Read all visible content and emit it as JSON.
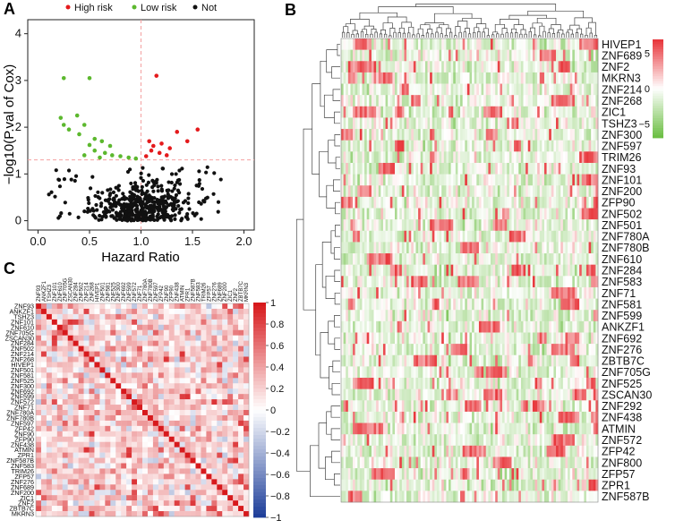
{
  "panel_labels": {
    "a": "A",
    "b": "B",
    "c": "C"
  },
  "chart_data": [
    {
      "type": "scatter",
      "title": "",
      "xlabel": "Hazard Ratio",
      "ylabel": "−log10(P.val of Cox)",
      "xlim": [
        -0.1,
        2.1
      ],
      "ylim": [
        -0.2,
        4.3
      ],
      "xticks": [
        "0.0",
        "0.5",
        "1.0",
        "1.5",
        "2.0"
      ],
      "yticks": [
        "0",
        "1",
        "2",
        "3",
        "4"
      ],
      "threshold_y": 1.3,
      "threshold_x": 1.0,
      "legend": {
        "placement": "top",
        "items": [
          {
            "label": "High risk",
            "color": "#e41a1c"
          },
          {
            "label": "Low risk",
            "color": "#5cb82e"
          },
          {
            "label": "Not",
            "color": "#111111"
          }
        ]
      },
      "series": [
        {
          "name": "High risk",
          "color": "#e41a1c",
          "points": [
            [
              1.15,
              3.1
            ],
            [
              1.55,
              1.95
            ],
            [
              1.35,
              1.9
            ],
            [
              1.45,
              1.7
            ],
            [
              1.08,
              1.7
            ],
            [
              1.2,
              1.65
            ],
            [
              1.12,
              1.6
            ],
            [
              1.28,
              1.55
            ],
            [
              1.1,
              1.5
            ],
            [
              1.18,
              1.45
            ],
            [
              1.25,
              1.4
            ],
            [
              1.05,
              1.38
            ]
          ]
        },
        {
          "name": "Low risk",
          "color": "#5cb82e",
          "points": [
            [
              0.25,
              3.05
            ],
            [
              0.5,
              3.05
            ],
            [
              0.22,
              2.2
            ],
            [
              0.38,
              2.25
            ],
            [
              0.25,
              2.05
            ],
            [
              0.45,
              2.05
            ],
            [
              0.3,
              1.95
            ],
            [
              0.4,
              1.85
            ],
            [
              0.55,
              1.75
            ],
            [
              0.62,
              1.7
            ],
            [
              0.5,
              1.62
            ],
            [
              0.7,
              1.6
            ],
            [
              0.55,
              1.5
            ],
            [
              0.65,
              1.45
            ],
            [
              0.72,
              1.4
            ],
            [
              0.8,
              1.38
            ],
            [
              0.88,
              1.35
            ],
            [
              0.95,
              1.33
            ],
            [
              0.6,
              1.35
            ],
            [
              0.45,
              1.4
            ]
          ]
        }
      ]
    },
    {
      "type": "heatmap",
      "title": "",
      "rows": [
        "HIVEP1",
        "ZNF689",
        "ZNF2",
        "MKRN3",
        "ZNF214",
        "ZNF268",
        "ZIC1",
        "TSHZ3",
        "ZNF300",
        "ZNF597",
        "TRIM26",
        "ZNF93",
        "ZNF101",
        "ZNF200",
        "ZFP90",
        "ZNF502",
        "ZNF501",
        "ZNF780A",
        "ZNF780B",
        "ZNF610",
        "ZNF284",
        "ZNF583",
        "ZNF71",
        "ZNF581",
        "ZNF599",
        "ANKZF1",
        "ZNF692",
        "ZNF276",
        "ZBTB7C",
        "ZNF705G",
        "ZNF525",
        "ZSCAN30",
        "ZNF292",
        "ZNF438",
        "ATMIN",
        "ZNF572",
        "ZFP42",
        "ZNF800",
        "ZFP57",
        "ZPR1",
        "ZNF587B"
      ],
      "n_columns": 110,
      "colorbar": {
        "ticks": [
          "5",
          "0",
          "−5"
        ],
        "range": [
          -7,
          7
        ],
        "colors": {
          "high": "#e8383d",
          "mid": "#ffffff",
          "low": "#6dbf45"
        }
      }
    },
    {
      "type": "heatmap",
      "title": "",
      "labels": [
        "ZNF93",
        "ANKZF1",
        "TSHZ3",
        "ZNF101",
        "ZNF610",
        "ZNF705G",
        "ZSCAN30",
        "ZNF284",
        "ZNF502",
        "ZNF214",
        "ZNF268",
        "HIVEP1",
        "ZNF501",
        "ZNF581",
        "ZNF525",
        "ZNF300",
        "ZNF692",
        "ZNF599",
        "ZNF572",
        "ZNF71",
        "ZNF780A",
        "ZNF780B",
        "ZNF597",
        "ZFP42",
        "ZNF90",
        "ZFP90",
        "ZNF438",
        "ATMIN",
        "ZPR1",
        "ZNF587B",
        "ZNF583",
        "TRIM26",
        "ZFP57",
        "ZNF276",
        "ZNF689",
        "ZNF200",
        "ZIC1",
        "ZNF2",
        "ZBTB7C",
        "MKRN3"
      ],
      "colorbar": {
        "ticks": [
          "1",
          "0.8",
          "0.6",
          "0.4",
          "0.2",
          "0",
          "−0.2",
          "−0.4",
          "−0.6",
          "−0.8",
          "−1"
        ],
        "range": [
          -1,
          1
        ],
        "colors": {
          "high": "#d7191c",
          "mid": "#ffffff",
          "low": "#1f3f9a"
        }
      }
    }
  ]
}
